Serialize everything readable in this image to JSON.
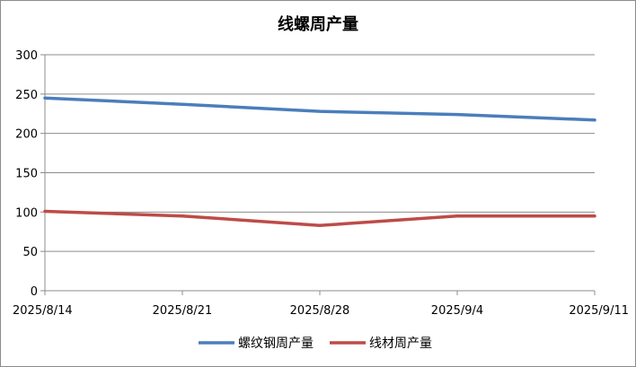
{
  "chart_data": {
    "type": "line",
    "title": "线螺周产量",
    "categories": [
      "2025/8/14",
      "2025/8/21",
      "2025/8/28",
      "2025/9/4",
      "2025/9/11"
    ],
    "ylim": [
      0,
      300
    ],
    "yticks": [
      0,
      50,
      100,
      150,
      200,
      250,
      300
    ],
    "grid": true,
    "legend_position": "bottom",
    "series": [
      {
        "name": "螺纹钢周产量",
        "color": "#4a7ebb",
        "values": [
          245,
          237,
          228,
          224,
          217
        ]
      },
      {
        "name": "线材周产量",
        "color": "#be4b48",
        "values": [
          101,
          95,
          83,
          95,
          95
        ]
      }
    ]
  }
}
